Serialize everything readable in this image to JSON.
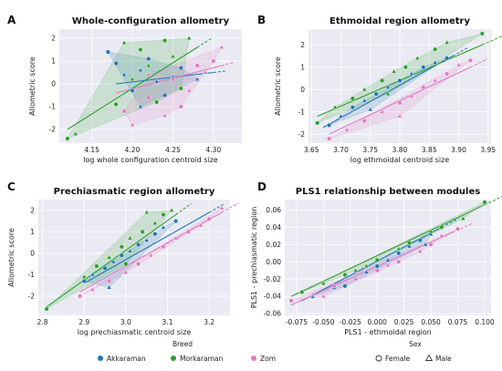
{
  "legend": {
    "breed_title": "Breed",
    "sex_title": "Sex",
    "breeds": [
      {
        "name": "Akkaraman",
        "color": "#1f77b4"
      },
      {
        "name": "Morkaraman",
        "color": "#2ca02c"
      },
      {
        "name": "Zom",
        "color": "#e377c2"
      }
    ],
    "sexes": [
      {
        "name": "Female",
        "marker": "circle"
      },
      {
        "name": "Male",
        "marker": "triangle"
      }
    ]
  },
  "chart_data": [
    {
      "panel": "A",
      "type": "scatter",
      "title": "Whole-configuration allometry",
      "xlabel": "log whole configuration centroid size",
      "ylabel": "Allometric score",
      "xlim": [
        4.11,
        4.335
      ],
      "ylim": [
        -2.6,
        2.4
      ],
      "xticks": [
        "4.15",
        "4.20",
        "4.25",
        "4.30"
      ],
      "xtick_values": [
        4.15,
        4.2,
        4.25,
        4.3
      ],
      "yticks": [
        "-2",
        "-1",
        "0",
        "1",
        "2"
      ],
      "ytick_values": [
        -2,
        -1,
        0,
        1,
        2
      ],
      "series": [
        {
          "name": "Akkaraman",
          "points": [
            [
              4.18,
              0.9
            ],
            [
              4.19,
              0.4
            ],
            [
              4.2,
              -0.3
            ],
            [
              4.21,
              0.6
            ],
            [
              4.22,
              1.1
            ],
            [
              4.23,
              0.1
            ],
            [
              4.24,
              -0.5
            ],
            [
              4.25,
              0.3
            ],
            [
              4.26,
              0.7
            ],
            [
              4.21,
              -1.0
            ],
            [
              4.17,
              1.4
            ],
            [
              4.28,
              0.2
            ]
          ],
          "fit": [
            [
              4.18,
              0.0
            ],
            [
              4.3,
              0.5
            ]
          ]
        },
        {
          "name": "Morkaraman",
          "points": [
            [
              4.12,
              -2.4
            ],
            [
              4.13,
              -2.2
            ],
            [
              4.18,
              -0.9
            ],
            [
              4.2,
              0.2
            ],
            [
              4.21,
              1.5
            ],
            [
              4.22,
              0.8
            ],
            [
              4.24,
              1.9
            ],
            [
              4.25,
              1.2
            ],
            [
              4.26,
              -0.2
            ],
            [
              4.27,
              2.0
            ],
            [
              4.23,
              -0.8
            ],
            [
              4.19,
              1.8
            ]
          ],
          "fit": [
            [
              4.12,
              -2.0
            ],
            [
              4.28,
              1.6
            ]
          ]
        },
        {
          "name": "Zom",
          "points": [
            [
              4.19,
              -1.2
            ],
            [
              4.2,
              -1.8
            ],
            [
              4.22,
              -0.6
            ],
            [
              4.24,
              -1.4
            ],
            [
              4.25,
              0.2
            ],
            [
              4.27,
              -0.3
            ],
            [
              4.28,
              0.8
            ],
            [
              4.29,
              0.5
            ],
            [
              4.3,
              1.0
            ],
            [
              4.31,
              1.6
            ],
            [
              4.26,
              -1.0
            ],
            [
              4.22,
              0.4
            ]
          ],
          "fit": [
            [
              4.18,
              -0.4
            ],
            [
              4.31,
              0.8
            ]
          ]
        }
      ]
    },
    {
      "panel": "B",
      "type": "scatter",
      "title": "Ethmoidal region allometry",
      "xlabel": "log ethmoidal centroid size",
      "ylabel": "Allometric score",
      "xlim": [
        3.645,
        3.955
      ],
      "ylim": [
        -2.4,
        2.7
      ],
      "xticks": [
        "3.65",
        "3.70",
        "3.75",
        "3.80",
        "3.85",
        "3.90",
        "3.95"
      ],
      "xtick_values": [
        3.65,
        3.7,
        3.75,
        3.8,
        3.85,
        3.9,
        3.95
      ],
      "yticks": [
        "-2",
        "-1",
        "0",
        "1",
        "2"
      ],
      "ytick_values": [
        -2,
        -1,
        0,
        1,
        2
      ],
      "series": [
        {
          "name": "Akkaraman",
          "points": [
            [
              3.68,
              -1.6
            ],
            [
              3.7,
              -1.2
            ],
            [
              3.72,
              -0.8
            ],
            [
              3.74,
              -0.5
            ],
            [
              3.76,
              -0.2
            ],
            [
              3.78,
              0.1
            ],
            [
              3.8,
              0.4
            ],
            [
              3.82,
              0.7
            ],
            [
              3.84,
              1.0
            ],
            [
              3.86,
              1.2
            ],
            [
              3.88,
              1.4
            ],
            [
              3.75,
              -0.9
            ]
          ],
          "fit": [
            [
              3.67,
              -1.7
            ],
            [
              3.89,
              1.5
            ]
          ]
        },
        {
          "name": "Morkaraman",
          "points": [
            [
              3.66,
              -1.5
            ],
            [
              3.69,
              -0.8
            ],
            [
              3.72,
              -0.4
            ],
            [
              3.74,
              0.0
            ],
            [
              3.77,
              0.4
            ],
            [
              3.79,
              0.8
            ],
            [
              3.81,
              1.0
            ],
            [
              3.83,
              1.4
            ],
            [
              3.86,
              1.8
            ],
            [
              3.88,
              2.1
            ],
            [
              3.94,
              2.5
            ],
            [
              3.78,
              -0.2
            ]
          ],
          "fit": [
            [
              3.66,
              -1.2
            ],
            [
              3.94,
              2.0
            ]
          ]
        },
        {
          "name": "Zom",
          "points": [
            [
              3.68,
              -2.2
            ],
            [
              3.71,
              -1.8
            ],
            [
              3.74,
              -1.4
            ],
            [
              3.77,
              -1.0
            ],
            [
              3.8,
              -0.6
            ],
            [
              3.82,
              -0.3
            ],
            [
              3.84,
              0.1
            ],
            [
              3.86,
              0.4
            ],
            [
              3.88,
              0.7
            ],
            [
              3.9,
              1.1
            ],
            [
              3.92,
              1.3
            ],
            [
              3.8,
              -1.2
            ]
          ],
          "fit": [
            [
              3.68,
              -2.0
            ],
            [
              3.92,
              1.0
            ]
          ]
        }
      ]
    },
    {
      "panel": "C",
      "type": "scatter",
      "title": "Prechiasmatic region allometry",
      "xlabel": "log prechiasmatic centroid size",
      "ylabel": "Allometric score",
      "xlim": [
        2.79,
        3.25
      ],
      "ylim": [
        -2.9,
        2.5
      ],
      "xticks": [
        "2.8",
        "2.9",
        "3.0",
        "3.1",
        "3.2"
      ],
      "xtick_values": [
        2.8,
        2.9,
        3.0,
        3.1,
        3.2
      ],
      "yticks": [
        "-2",
        "-1",
        "0",
        "1",
        "2"
      ],
      "ytick_values": [
        -2,
        -1,
        0,
        1,
        2
      ],
      "series": [
        {
          "name": "Akkaraman",
          "points": [
            [
              2.9,
              -1.3
            ],
            [
              2.92,
              -1.0
            ],
            [
              2.95,
              -0.7
            ],
            [
              2.97,
              -0.4
            ],
            [
              2.99,
              -0.1
            ],
            [
              3.01,
              0.1
            ],
            [
              3.03,
              0.4
            ],
            [
              3.05,
              0.6
            ],
            [
              3.07,
              0.9
            ],
            [
              3.09,
              1.2
            ],
            [
              3.12,
              1.5
            ],
            [
              2.96,
              -1.6
            ]
          ],
          "fit": [
            [
              2.9,
              -1.4
            ],
            [
              3.2,
              1.9
            ]
          ]
        },
        {
          "name": "Morkaraman",
          "points": [
            [
              2.81,
              -2.6
            ],
            [
              2.9,
              -1.1
            ],
            [
              2.93,
              -0.6
            ],
            [
              2.96,
              -0.2
            ],
            [
              2.99,
              0.3
            ],
            [
              3.01,
              0.7
            ],
            [
              3.04,
              1.0
            ],
            [
              3.07,
              1.4
            ],
            [
              3.09,
              1.8
            ],
            [
              3.11,
              2.0
            ],
            [
              3.0,
              -0.5
            ],
            [
              3.05,
              1.9
            ]
          ],
          "fit": [
            [
              2.81,
              -2.5
            ],
            [
              3.12,
              1.8
            ]
          ]
        },
        {
          "name": "Zom",
          "points": [
            [
              2.89,
              -2.0
            ],
            [
              2.92,
              -1.7
            ],
            [
              2.96,
              -1.3
            ],
            [
              3.0,
              -0.9
            ],
            [
              3.03,
              -0.5
            ],
            [
              3.06,
              -0.1
            ],
            [
              3.09,
              0.3
            ],
            [
              3.12,
              0.7
            ],
            [
              3.15,
              1.0
            ],
            [
              3.18,
              1.3
            ],
            [
              3.2,
              1.6
            ],
            [
              3.23,
              2.1
            ]
          ],
          "fit": [
            [
              2.89,
              -1.8
            ],
            [
              3.23,
              1.9
            ]
          ]
        }
      ]
    },
    {
      "panel": "D",
      "type": "scatter",
      "title": "PLS1 relationship between modules",
      "xlabel": "PLS1 - ethmoidal region",
      "ylabel": "PLS1 - prechiasmatic region",
      "xlim": [
        -0.086,
        0.106
      ],
      "ylim": [
        -0.062,
        0.072
      ],
      "xticks": [
        "-0.075",
        "-0.050",
        "-0.025",
        "0.000",
        "0.025",
        "0.050",
        "0.075",
        "0.100"
      ],
      "xtick_values": [
        -0.075,
        -0.05,
        -0.025,
        0.0,
        0.025,
        0.05,
        0.075,
        0.1
      ],
      "yticks": [
        "-0.06",
        "-0.04",
        "-0.02",
        "0.00",
        "0.02",
        "0.04",
        "0.06"
      ],
      "ytick_values": [
        -0.06,
        -0.04,
        -0.02,
        0.0,
        0.02,
        0.04,
        0.06
      ],
      "series": [
        {
          "name": "Akkaraman",
          "points": [
            [
              -0.06,
              -0.04
            ],
            [
              -0.04,
              -0.03
            ],
            [
              -0.02,
              -0.02
            ],
            [
              -0.01,
              -0.012
            ],
            [
              0.0,
              -0.005
            ],
            [
              0.01,
              0.002
            ],
            [
              0.02,
              0.01
            ],
            [
              0.03,
              0.018
            ],
            [
              0.04,
              0.025
            ],
            [
              0.05,
              0.032
            ],
            [
              -0.03,
              -0.028
            ],
            [
              0.045,
              0.02
            ]
          ],
          "fit": [
            [
              -0.07,
              -0.045
            ],
            [
              0.06,
              0.04
            ]
          ]
        },
        {
          "name": "Morkaraman",
          "points": [
            [
              -0.07,
              -0.035
            ],
            [
              -0.05,
              -0.025
            ],
            [
              -0.03,
              -0.015
            ],
            [
              -0.01,
              -0.005
            ],
            [
              0.0,
              0.002
            ],
            [
              0.02,
              0.015
            ],
            [
              0.03,
              0.022
            ],
            [
              0.05,
              0.035
            ],
            [
              0.06,
              0.04
            ],
            [
              0.08,
              0.05
            ],
            [
              0.1,
              0.069
            ],
            [
              -0.02,
              -0.01
            ]
          ],
          "fit": [
            [
              -0.08,
              -0.04
            ],
            [
              0.1,
              0.066
            ]
          ]
        },
        {
          "name": "Zom",
          "points": [
            [
              -0.08,
              -0.045
            ],
            [
              -0.06,
              -0.038
            ],
            [
              -0.04,
              -0.028
            ],
            [
              -0.02,
              -0.02
            ],
            [
              0.0,
              -0.01
            ],
            [
              0.01,
              -0.004
            ],
            [
              0.02,
              0.0
            ],
            [
              0.04,
              0.012
            ],
            [
              0.05,
              0.02
            ],
            [
              0.06,
              0.03
            ],
            [
              0.075,
              0.038
            ],
            [
              -0.05,
              -0.04
            ]
          ],
          "fit": [
            [
              -0.08,
              -0.05
            ],
            [
              0.07,
              0.034
            ]
          ]
        }
      ]
    }
  ]
}
